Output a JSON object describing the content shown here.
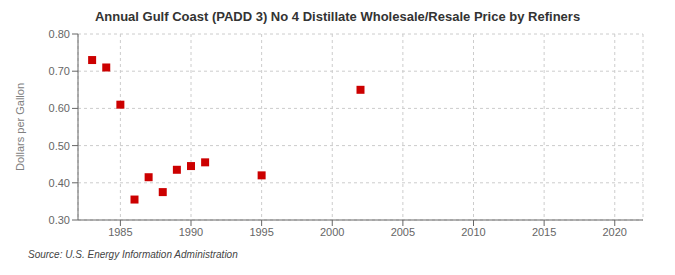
{
  "chart_data": {
    "type": "scatter",
    "title": "Annual Gulf Coast (PADD 3) No 4 Distillate Wholesale/Resale Price by Refiners",
    "ylabel": "Dollars per Gallon",
    "annotations": [
      "Source: U.S. Energy Information Administration"
    ],
    "x": [
      1983,
      1984,
      1985,
      1986,
      1987,
      1988,
      1989,
      1990,
      1991,
      1995,
      2002
    ],
    "values": [
      0.73,
      0.71,
      0.61,
      0.355,
      0.415,
      0.375,
      0.435,
      0.445,
      0.455,
      0.42,
      0.65
    ],
    "color": "#cc0000",
    "marker": "square",
    "xlim": [
      1982,
      2022
    ],
    "ylim": [
      0.3,
      0.8
    ],
    "xticks": [
      1985,
      1990,
      1995,
      2000,
      2005,
      2010,
      2015,
      2020
    ],
    "yticks": [
      {
        "value": 0.3,
        "label": "0.30"
      },
      {
        "value": 0.4,
        "label": "0.40"
      },
      {
        "value": 0.5,
        "label": "0.50"
      },
      {
        "value": 0.6,
        "label": "0.60"
      },
      {
        "value": 0.7,
        "label": "0.70"
      },
      {
        "value": 0.8,
        "label": "0.80"
      }
    ],
    "grid": true
  }
}
